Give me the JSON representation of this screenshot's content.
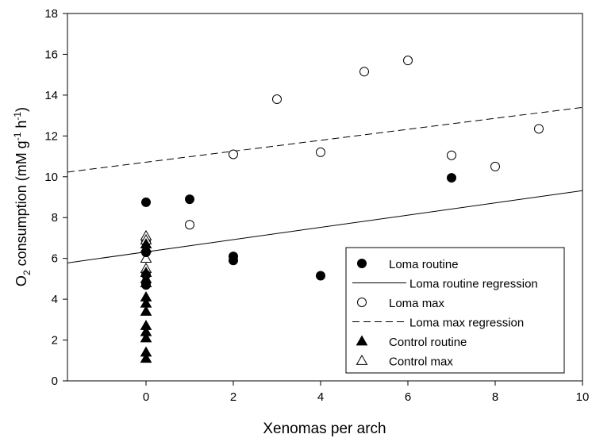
{
  "chart_data": {
    "type": "scatter",
    "xlabel": "Xenomas per arch",
    "ylabel": {
      "prefix": "O",
      "sub": "2",
      "mid": " consumption (mM g",
      "sup1": "-1",
      "mid2": " h",
      "sup2": "-1",
      "suffix": ")"
    },
    "xlim": [
      -1.8,
      10
    ],
    "ylim": [
      0,
      18
    ],
    "xticks": [
      0,
      2,
      4,
      6,
      8,
      10
    ],
    "yticks": [
      0,
      2,
      4,
      6,
      8,
      10,
      12,
      14,
      16,
      18
    ],
    "series": [
      {
        "name": "Loma routine",
        "kind": "points",
        "marker": "circle-filled",
        "points": [
          [
            0,
            8.75
          ],
          [
            1,
            8.9
          ],
          [
            2,
            6.1
          ],
          [
            2,
            5.9
          ],
          [
            4,
            5.15
          ],
          [
            7,
            9.95
          ],
          [
            0,
            6.3
          ],
          [
            0,
            5.2
          ],
          [
            0,
            4.7
          ]
        ]
      },
      {
        "name": "Loma routine regression",
        "kind": "line",
        "dash": "solid",
        "x": [
          -1.8,
          10
        ],
        "y": [
          5.78,
          9.32
        ]
      },
      {
        "name": "Loma max",
        "kind": "points",
        "marker": "circle-open",
        "points": [
          [
            0,
            6.8
          ],
          [
            0,
            4.75
          ],
          [
            1,
            7.65
          ],
          [
            2,
            11.1
          ],
          [
            3,
            13.8
          ],
          [
            4,
            11.2
          ],
          [
            5,
            15.15
          ],
          [
            6,
            15.7
          ],
          [
            7,
            11.05
          ],
          [
            8,
            10.5
          ],
          [
            9,
            12.35
          ]
        ]
      },
      {
        "name": "Loma max regression",
        "kind": "line",
        "dash": "dashed",
        "x": [
          -1.8,
          10
        ],
        "y": [
          10.23,
          13.4
        ]
      },
      {
        "name": "Control routine",
        "kind": "points",
        "marker": "triangle-filled",
        "points": [
          [
            0,
            6.7
          ],
          [
            0,
            5.3
          ],
          [
            0,
            5.0
          ],
          [
            0,
            4.1
          ],
          [
            0,
            3.8
          ],
          [
            0,
            3.4
          ],
          [
            0,
            2.7
          ],
          [
            0,
            2.4
          ],
          [
            0,
            2.1
          ],
          [
            0,
            1.4
          ],
          [
            0,
            1.1
          ]
        ]
      },
      {
        "name": "Control max",
        "kind": "points",
        "marker": "triangle-open",
        "points": [
          [
            0,
            7.1
          ],
          [
            0,
            6.9
          ],
          [
            0,
            6.5
          ],
          [
            0,
            6.0
          ],
          [
            0,
            5.5
          ],
          [
            0,
            4.8
          ]
        ]
      }
    ],
    "legend": {
      "placement": "bottom-right"
    }
  }
}
